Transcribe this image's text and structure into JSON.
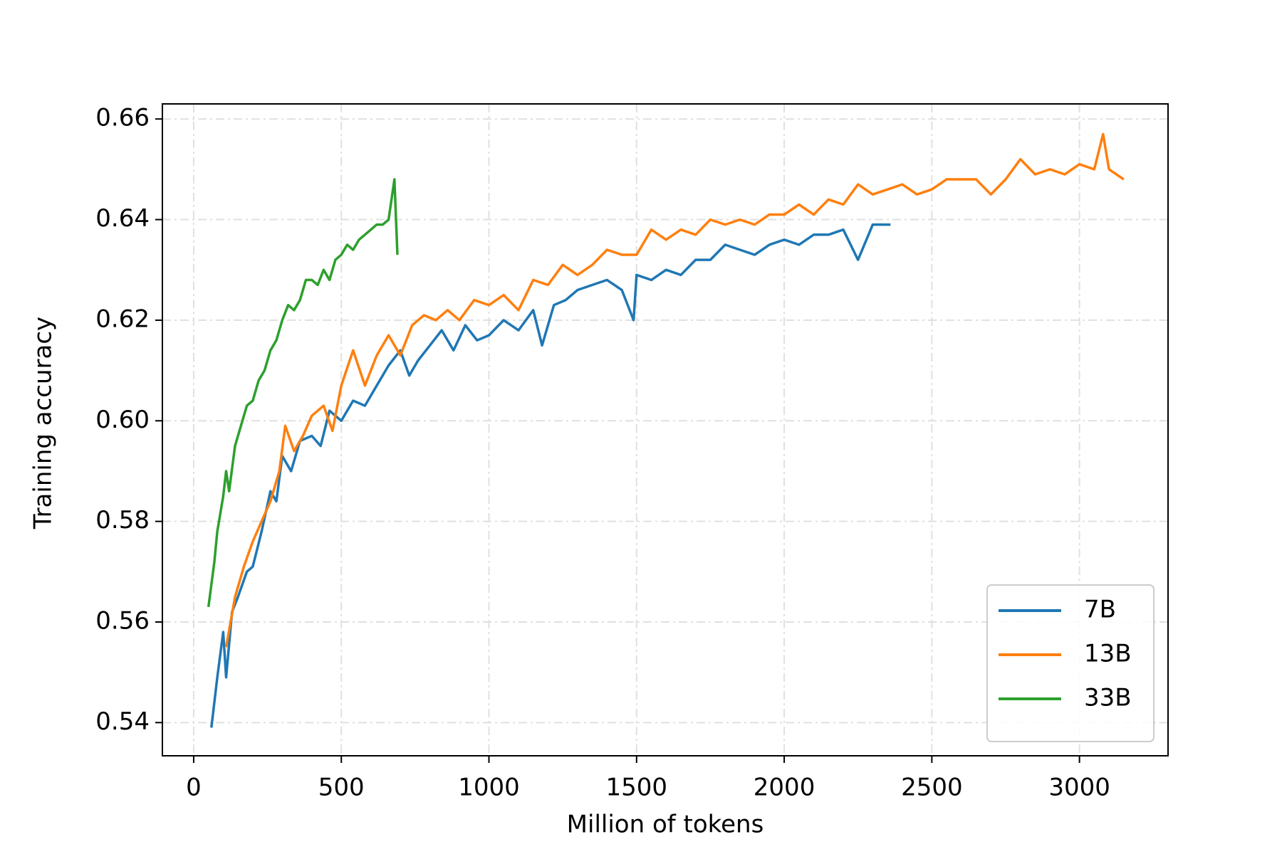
{
  "chart_data": {
    "type": "line",
    "xlabel": "Million of tokens",
    "ylabel": "Training accuracy",
    "xlim": [
      -106,
      3300
    ],
    "ylim": [
      0.5334,
      0.663
    ],
    "xticks": [
      0,
      500,
      1000,
      1500,
      2000,
      2500,
      3000
    ],
    "yticks": [
      0.54,
      0.56,
      0.58,
      {
        "value": 0.6,
        "label": "0.60"
      },
      0.62,
      0.64,
      0.66
    ],
    "grid": true,
    "legend": "lower right",
    "series": [
      {
        "name": "7B",
        "color": "#1f77b4",
        "x": [
          60,
          80,
          100,
          110,
          130,
          150,
          180,
          200,
          230,
          260,
          280,
          300,
          330,
          360,
          400,
          430,
          460,
          500,
          540,
          580,
          620,
          660,
          700,
          730,
          760,
          800,
          840,
          880,
          920,
          960,
          1000,
          1050,
          1100,
          1150,
          1180,
          1220,
          1260,
          1300,
          1350,
          1400,
          1450,
          1490,
          1500,
          1550,
          1600,
          1650,
          1700,
          1750,
          1800,
          1850,
          1900,
          1950,
          2000,
          2050,
          2100,
          2150,
          2200,
          2250,
          2300,
          2360
        ],
        "values": [
          0.539,
          0.549,
          0.558,
          0.549,
          0.562,
          0.565,
          0.57,
          0.571,
          0.578,
          0.586,
          0.584,
          0.593,
          0.59,
          0.596,
          0.597,
          0.595,
          0.602,
          0.6,
          0.604,
          0.603,
          0.607,
          0.611,
          0.614,
          0.609,
          0.612,
          0.615,
          0.618,
          0.614,
          0.619,
          0.616,
          0.617,
          0.62,
          0.618,
          0.622,
          0.615,
          0.623,
          0.624,
          0.626,
          0.627,
          0.628,
          0.626,
          0.62,
          0.629,
          0.628,
          0.63,
          0.629,
          0.632,
          0.632,
          0.635,
          0.634,
          0.633,
          0.635,
          0.636,
          0.635,
          0.637,
          0.637,
          0.638,
          0.632,
          0.639,
          0.639
        ]
      },
      {
        "name": "13B",
        "color": "#ff7f0e",
        "x": [
          110,
          140,
          170,
          200,
          230,
          260,
          290,
          310,
          340,
          370,
          400,
          440,
          470,
          500,
          540,
          580,
          620,
          660,
          700,
          740,
          780,
          820,
          860,
          900,
          950,
          1000,
          1050,
          1100,
          1150,
          1200,
          1250,
          1300,
          1350,
          1400,
          1450,
          1500,
          1550,
          1600,
          1650,
          1700,
          1750,
          1800,
          1850,
          1900,
          1950,
          2000,
          2050,
          2100,
          2150,
          2200,
          2250,
          2300,
          2350,
          2400,
          2450,
          2500,
          2550,
          2600,
          2650,
          2700,
          2750,
          2800,
          2850,
          2900,
          2950,
          3000,
          3050,
          3080,
          3100,
          3150
        ],
        "values": [
          0.555,
          0.565,
          0.571,
          0.576,
          0.58,
          0.584,
          0.59,
          0.599,
          0.594,
          0.597,
          0.601,
          0.603,
          0.598,
          0.607,
          0.614,
          0.607,
          0.613,
          0.617,
          0.613,
          0.619,
          0.621,
          0.62,
          0.622,
          0.62,
          0.624,
          0.623,
          0.625,
          0.622,
          0.628,
          0.627,
          0.631,
          0.629,
          0.631,
          0.634,
          0.633,
          0.633,
          0.638,
          0.636,
          0.638,
          0.637,
          0.64,
          0.639,
          0.64,
          0.639,
          0.641,
          0.641,
          0.643,
          0.641,
          0.644,
          0.643,
          0.647,
          0.645,
          0.646,
          0.647,
          0.645,
          0.646,
          0.648,
          0.648,
          0.648,
          0.645,
          0.648,
          0.652,
          0.649,
          0.65,
          0.649,
          0.651,
          0.65,
          0.657,
          0.65,
          0.648
        ]
      },
      {
        "name": "33B",
        "color": "#2ca02c",
        "x": [
          50,
          70,
          80,
          100,
          110,
          120,
          140,
          160,
          180,
          200,
          220,
          240,
          260,
          280,
          300,
          320,
          340,
          360,
          380,
          400,
          420,
          440,
          460,
          480,
          500,
          520,
          540,
          560,
          580,
          600,
          620,
          640,
          660,
          680,
          690
        ],
        "values": [
          0.563,
          0.572,
          0.578,
          0.585,
          0.59,
          0.586,
          0.595,
          0.599,
          0.603,
          0.604,
          0.608,
          0.61,
          0.614,
          0.616,
          0.62,
          0.623,
          0.622,
          0.624,
          0.628,
          0.628,
          0.627,
          0.63,
          0.628,
          0.632,
          0.633,
          0.635,
          0.634,
          0.636,
          0.637,
          0.638,
          0.639,
          0.639,
          0.64,
          0.648,
          0.633
        ]
      }
    ]
  }
}
